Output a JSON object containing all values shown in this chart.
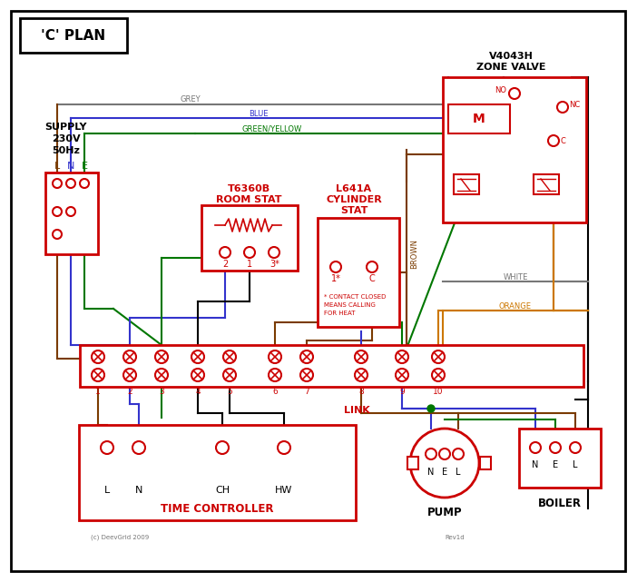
{
  "title": "'C' PLAN",
  "bg_color": "#ffffff",
  "red": "#cc0000",
  "blue": "#3333cc",
  "green": "#007700",
  "grey": "#777777",
  "brown": "#7a3b00",
  "orange": "#cc7700",
  "black": "#000000",
  "pink": "#ff9999",
  "supply_text": [
    "SUPPLY",
    "230V",
    "50Hz"
  ],
  "lne": [
    "L",
    "N",
    "E"
  ],
  "zone_valve_label": [
    "V4043H",
    "ZONE VALVE"
  ],
  "room_stat_label": [
    "T6360B",
    "ROOM STAT"
  ],
  "cyl_stat_label": [
    "L641A",
    "CYLINDER",
    "STAT"
  ],
  "cyl_note": [
    "* CONTACT CLOSED",
    "MEANS CALLING",
    "FOR HEAT"
  ],
  "tc_label": "TIME CONTROLLER",
  "tc_terminals": [
    "L",
    "N",
    "CH",
    "HW"
  ],
  "pump_label": "PUMP",
  "pump_nel": [
    "N",
    "E",
    "L"
  ],
  "boiler_label": "BOILER",
  "boiler_nel": [
    "N",
    "E",
    "L"
  ],
  "link_text": "LINK",
  "copyright": "(c) DeevGrid 2009",
  "rev": "Rev1d"
}
